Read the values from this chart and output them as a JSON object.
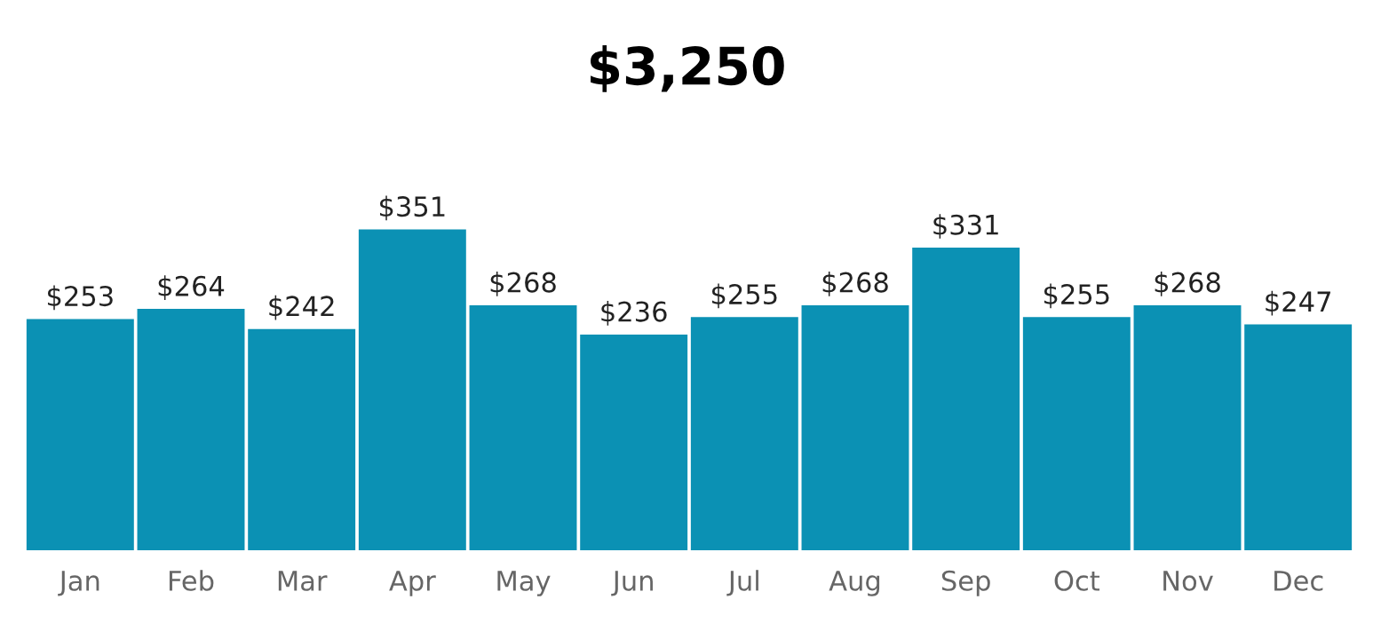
{
  "chart_data": {
    "type": "bar",
    "title": "$3,250",
    "categories": [
      "Jan",
      "Feb",
      "Mar",
      "Apr",
      "May",
      "Jun",
      "Jul",
      "Aug",
      "Sep",
      "Oct",
      "Nov",
      "Dec"
    ],
    "values": [
      253,
      264,
      242,
      351,
      268,
      236,
      255,
      268,
      331,
      255,
      268,
      247
    ],
    "value_labels": [
      "$253",
      "$264",
      "$242",
      "$351",
      "$268",
      "$236",
      "$255",
      "$268",
      "$331",
      "$255",
      "$268",
      "$247"
    ],
    "color": "#0b91b4",
    "grid": false,
    "legend": false
  }
}
